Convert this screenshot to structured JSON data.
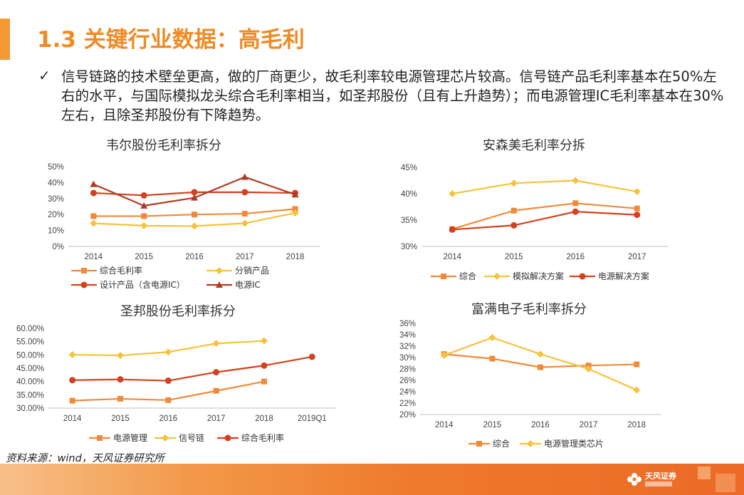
{
  "header": {
    "title": "1.3 关键行业数据：高毛利",
    "check_icon": "✓",
    "bullet": "信号链路的技术壁垒更高，做的厂商更少，故毛利率较电源管理芯片较高。信号链产品毛利率基本在50%左右的水平，与国际模拟龙头综合毛利率相当，如圣邦股份（且有上升趋势）；而电源管理IC毛利率基本在30%左右，且除圣邦股份有下降趋势。"
  },
  "source": "资料来源：wind，天风证券研究所",
  "logo": {
    "text": "天风证券"
  },
  "colors": {
    "accent": "#f08a24",
    "orange": "#f08a3a",
    "yellow": "#f7c23a",
    "red": "#d3411f",
    "darkred": "#b33a22"
  },
  "chart_data": [
    {
      "type": "line",
      "title": "韦尔股份毛利率拆分",
      "categories": [
        "2014",
        "2015",
        "2016",
        "2017",
        "2018"
      ],
      "ylim": [
        0,
        50
      ],
      "yticks": [
        "0%",
        "10%",
        "20%",
        "30%",
        "40%",
        "50%"
      ],
      "series": [
        {
          "name": "综合毛利率",
          "values": [
            19,
            19,
            20,
            20.5,
            23.5
          ],
          "color": "#f08a3a",
          "marker": "square"
        },
        {
          "name": "分销产品",
          "values": [
            14.5,
            13,
            12.8,
            14.5,
            21
          ],
          "color": "#f7c23a",
          "marker": "diamond"
        },
        {
          "name": "设计产品（含电源IC）",
          "values": [
            33.5,
            32,
            34,
            34,
            33.5
          ],
          "color": "#d3411f",
          "marker": "circle"
        },
        {
          "name": "电源IC",
          "values": [
            39,
            25.5,
            30.5,
            43.5,
            32.5
          ],
          "color": "#b33a22",
          "marker": "triangle"
        }
      ]
    },
    {
      "type": "line",
      "title": "安森美毛利率分拆",
      "categories": [
        "2014",
        "2015",
        "2016",
        "2017"
      ],
      "ylim": [
        30,
        45
      ],
      "yticks": [
        "30%",
        "35%",
        "40%",
        "45%"
      ],
      "series": [
        {
          "name": "综合",
          "values": [
            33.3,
            36.8,
            38.2,
            37.2
          ],
          "color": "#f08a3a",
          "marker": "square"
        },
        {
          "name": "模拟解决方案",
          "values": [
            40,
            42,
            42.5,
            40.4
          ],
          "color": "#f7c23a",
          "marker": "diamond"
        },
        {
          "name": "电源解决方案",
          "values": [
            33.2,
            34,
            36.6,
            36
          ],
          "color": "#d3411f",
          "marker": "circle"
        }
      ]
    },
    {
      "type": "line",
      "title": "圣邦股份毛利率拆分",
      "categories": [
        "2014",
        "2015",
        "2016",
        "2017",
        "2018",
        "2019Q1"
      ],
      "ylim": [
        30,
        60
      ],
      "yticks": [
        "30.00%",
        "35.00%",
        "40.00%",
        "45.00%",
        "50.00%",
        "55.00%",
        "60.00%"
      ],
      "series": [
        {
          "name": "电源管理",
          "values": [
            32.8,
            33.5,
            33,
            36.5,
            40,
            null
          ],
          "color": "#f08a3a",
          "marker": "square"
        },
        {
          "name": "信号链",
          "values": [
            50.1,
            49.8,
            51.1,
            54.3,
            55.3,
            null
          ],
          "color": "#f7c23a",
          "marker": "diamond"
        },
        {
          "name": "综合毛利率",
          "values": [
            40.5,
            40.8,
            40.3,
            43.5,
            46,
            49.3
          ],
          "color": "#d3411f",
          "marker": "circle"
        }
      ]
    },
    {
      "type": "line",
      "title": "富满电子毛利率拆分",
      "categories": [
        "2014",
        "2015",
        "2016",
        "2017",
        "2018"
      ],
      "ylim": [
        20,
        36
      ],
      "yticks": [
        "20%",
        "22%",
        "24%",
        "26%",
        "28%",
        "30%",
        "32%",
        "34%",
        "36%"
      ],
      "series": [
        {
          "name": "综合",
          "values": [
            30.6,
            29.8,
            28.3,
            28.6,
            28.8
          ],
          "color": "#f08a3a",
          "marker": "square"
        },
        {
          "name": "电源管理类芯片",
          "values": [
            30.4,
            33.5,
            30.6,
            28,
            24.3
          ],
          "color": "#f7c23a",
          "marker": "diamond"
        }
      ]
    }
  ]
}
